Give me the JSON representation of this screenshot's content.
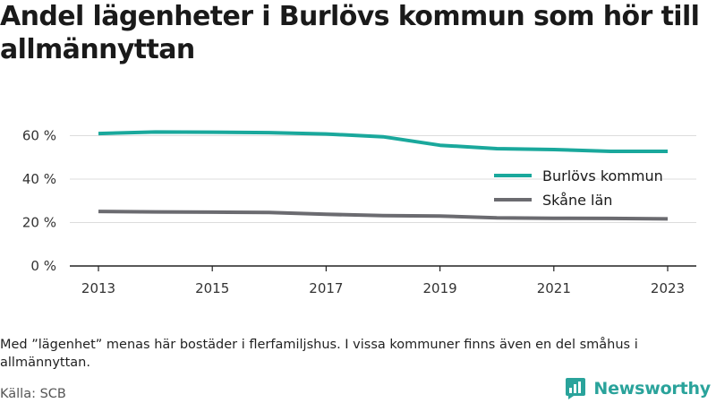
{
  "title": "Andel lägenheter i Burlövs kommun som hör till allmännyttan",
  "note": "Med ”lägenhet” menas här bostäder i flerfamiljshus. I vissa kommuner finns även en del småhus i allmännyttan.",
  "source": "Källa: SCB",
  "brand": {
    "name": "Newsworthy",
    "icon": "newsworthy-logo-icon",
    "color": "#2aa39b"
  },
  "chart_data": {
    "type": "line",
    "x": [
      2013,
      2014,
      2015,
      2016,
      2017,
      2018,
      2019,
      2020,
      2021,
      2022,
      2023
    ],
    "x_ticks": [
      2013,
      2015,
      2017,
      2019,
      2021,
      2023
    ],
    "y_ticks": [
      0,
      20,
      40,
      60
    ],
    "y_tick_labels": [
      "0 %",
      "20 %",
      "40 %",
      "60 %"
    ],
    "ylim": [
      0,
      68
    ],
    "grid": true,
    "legend_position": "right",
    "series": [
      {
        "name": "Burlövs kommun",
        "color": "#1aa89c",
        "values": [
          61.0,
          61.7,
          61.6,
          61.4,
          60.8,
          59.5,
          55.6,
          54.0,
          53.6,
          52.8,
          52.8
        ]
      },
      {
        "name": "Skåne län",
        "color": "#6b6b70",
        "values": [
          25.1,
          24.9,
          24.8,
          24.6,
          23.8,
          23.2,
          23.0,
          22.2,
          22.0,
          21.9,
          21.7
        ]
      }
    ]
  }
}
